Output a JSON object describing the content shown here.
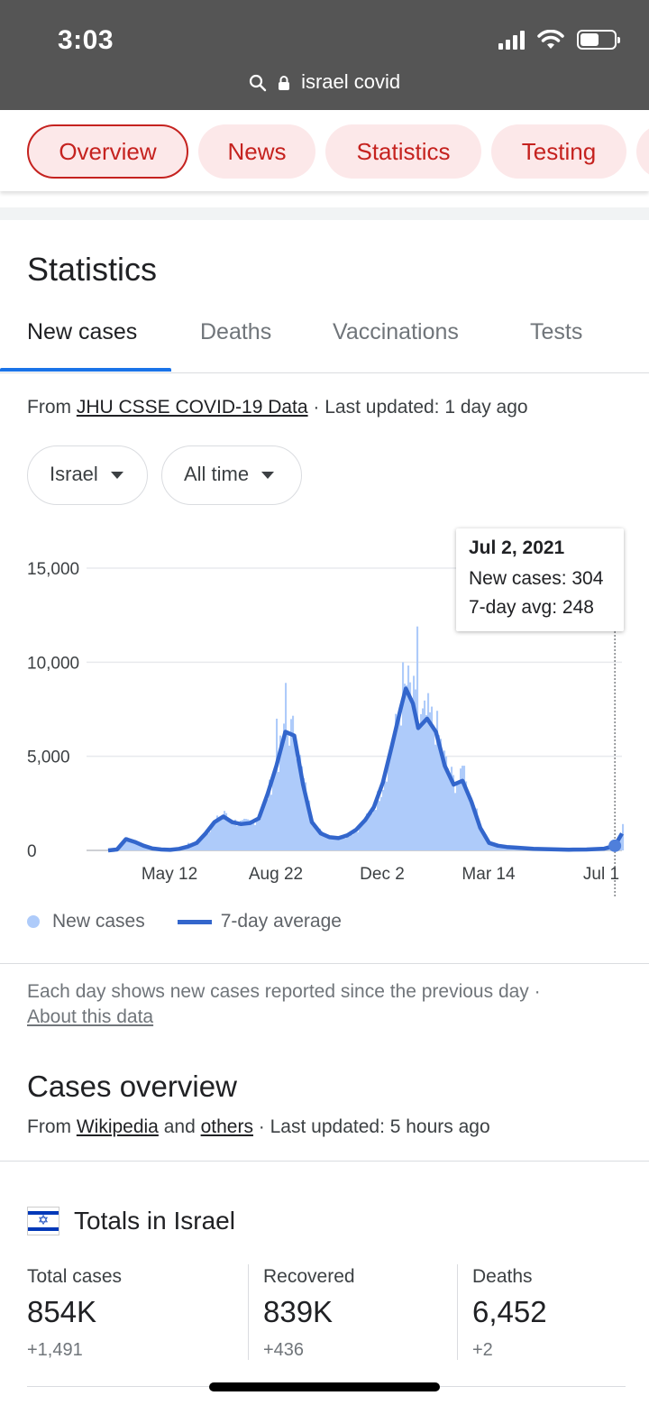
{
  "status_bar": {
    "time": "3:03"
  },
  "url_bar": {
    "query": "israel covid"
  },
  "pill_tabs": [
    "Overview",
    "News",
    "Statistics",
    "Testing"
  ],
  "statistics": {
    "title": "Statistics",
    "tabs": [
      "New cases",
      "Deaths",
      "Vaccinations",
      "Tests"
    ],
    "source_prefix": "From ",
    "source_link": "JHU CSSE COVID-19 Data",
    "source_suffix": " · Last updated: 1 day ago",
    "region_select": "Israel",
    "range_select": "All time"
  },
  "tooltip": {
    "date": "Jul 2, 2021",
    "new_cases": "New cases: 304",
    "avg": "7-day avg: 248"
  },
  "chart_data": {
    "type": "bar",
    "y_ticks": [
      "15,000",
      "10,000",
      "5,000",
      "0"
    ],
    "x_ticks": [
      "May 12",
      "Aug 22",
      "Dec 2",
      "Mar 14",
      "Jul 1"
    ],
    "ylim": [
      0,
      15000
    ],
    "series": [
      {
        "name": "New cases",
        "type": "bar",
        "color": "#aecbfa"
      },
      {
        "name": "7-day average",
        "type": "line",
        "color": "#3366cc"
      }
    ],
    "avg_points": [
      [
        0,
        0
      ],
      [
        0.5,
        50
      ],
      [
        1,
        600
      ],
      [
        1.5,
        450
      ],
      [
        2,
        250
      ],
      [
        2.5,
        100
      ],
      [
        3,
        50
      ],
      [
        3.5,
        30
      ],
      [
        4,
        80
      ],
      [
        4.5,
        200
      ],
      [
        5,
        400
      ],
      [
        5.5,
        900
      ],
      [
        6,
        1500
      ],
      [
        6.5,
        1800
      ],
      [
        7,
        1500
      ],
      [
        7.5,
        1400
      ],
      [
        8,
        1450
      ],
      [
        8.5,
        1700
      ],
      [
        9,
        3000
      ],
      [
        9.5,
        4500
      ],
      [
        10,
        6300
      ],
      [
        10.5,
        6100
      ],
      [
        11,
        3500
      ],
      [
        11.5,
        1500
      ],
      [
        12,
        900
      ],
      [
        12.5,
        700
      ],
      [
        13,
        650
      ],
      [
        13.5,
        800
      ],
      [
        14,
        1100
      ],
      [
        14.5,
        1600
      ],
      [
        15,
        2300
      ],
      [
        15.5,
        3600
      ],
      [
        16,
        5500
      ],
      [
        16.5,
        7500
      ],
      [
        16.8,
        8600
      ],
      [
        17.2,
        7800
      ],
      [
        17.5,
        6500
      ],
      [
        18,
        7000
      ],
      [
        18.5,
        6300
      ],
      [
        19,
        4500
      ],
      [
        19.5,
        3500
      ],
      [
        20,
        3700
      ],
      [
        20.5,
        2600
      ],
      [
        21,
        1200
      ],
      [
        21.5,
        400
      ],
      [
        22,
        250
      ],
      [
        22.5,
        180
      ],
      [
        23,
        150
      ],
      [
        24,
        80
      ],
      [
        25,
        60
      ],
      [
        26,
        40
      ],
      [
        27,
        50
      ],
      [
        28,
        90
      ],
      [
        28.6,
        248
      ],
      [
        29,
        900
      ]
    ],
    "case_spikes": [
      [
        1,
        700
      ],
      [
        4.5,
        400
      ],
      [
        6.5,
        2100
      ],
      [
        9.5,
        7000
      ],
      [
        10,
        8900
      ],
      [
        10.5,
        5500
      ],
      [
        16.6,
        10000
      ],
      [
        17,
        7000
      ],
      [
        17.4,
        11900
      ],
      [
        18.2,
        6000
      ],
      [
        20,
        4500
      ],
      [
        29,
        1400
      ]
    ],
    "x_range": [
      0,
      29
    ]
  },
  "legend": {
    "new_cases": "New cases",
    "avg": "7-day average"
  },
  "note": {
    "text": "Each day shows new cases reported since the previous day  ·",
    "link": "About this data"
  },
  "cases_overview": {
    "title": "Cases overview",
    "source_prefix": "From ",
    "link1": "Wikipedia",
    "and": " and ",
    "link2": "others",
    "suffix": " · Last updated: 5 hours ago"
  },
  "totals": {
    "title": "Totals in Israel",
    "columns": [
      {
        "label": "Total cases",
        "value": "854K",
        "delta": "+1,491"
      },
      {
        "label": "Recovered",
        "value": "839K",
        "delta": "+436"
      },
      {
        "label": "Deaths",
        "value": "6,452",
        "delta": "+2"
      }
    ]
  }
}
